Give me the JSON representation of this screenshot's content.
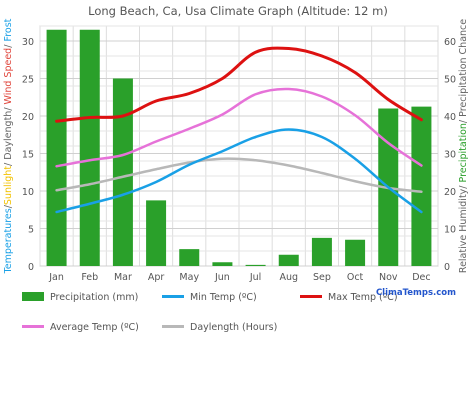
{
  "chart_data": {
    "type": "bar",
    "title": "Long Beach, Ca, Usa Climate Graph (Altitude: 12 m)",
    "categories": [
      "Jan",
      "Feb",
      "Mar",
      "Apr",
      "May",
      "Jun",
      "Jul",
      "Aug",
      "Sep",
      "Oct",
      "Nov",
      "Dec"
    ],
    "left_axis": {
      "label_parts": [
        {
          "text": "Temperatures",
          "color": "#19a0e6"
        },
        {
          "text": "/",
          "color": "#666666"
        },
        {
          "text": "Sunlight",
          "color": "#f2c200"
        },
        {
          "text": "/ Daylength/ ",
          "color": "#666666"
        },
        {
          "text": "Wind Speed",
          "color": "#e0463c"
        },
        {
          "text": "/ ",
          "color": "#666666"
        },
        {
          "text": "Frost",
          "color": "#19a0e6"
        }
      ],
      "ylim": [
        0,
        32
      ],
      "ticks": [
        "0",
        "5",
        "10",
        "15",
        "20",
        "25",
        "30"
      ]
    },
    "right_axis": {
      "label_parts": [
        {
          "text": "Relative Humidity/ ",
          "color": "#666666"
        },
        {
          "text": "Precipitation",
          "color": "#2ca02c"
        },
        {
          "text": "/ Precipitation Chance",
          "color": "#666666"
        }
      ],
      "ylim": [
        0,
        64
      ],
      "ticks": [
        "0",
        "10",
        "20",
        "30",
        "40",
        "50",
        "60"
      ]
    },
    "series": [
      {
        "name": "Precipitation (mm)",
        "kind": "bar",
        "axis": "right",
        "color": "#2aa02a",
        "values": [
          63,
          63,
          50,
          17.5,
          4.5,
          1,
          0.3,
          3,
          7.5,
          7,
          42,
          42.5
        ]
      },
      {
        "name": "Min Temp (ºC)",
        "kind": "line",
        "axis": "left",
        "color": "#19a0e6",
        "values": [
          7.2,
          8.3,
          9.5,
          11.2,
          13.5,
          15.3,
          17.2,
          18.2,
          17.2,
          14.3,
          10.5,
          7.2
        ]
      },
      {
        "name": "Max Temp (ºC)",
        "kind": "line",
        "axis": "left",
        "color": "#dd1111",
        "values": [
          19.3,
          19.8,
          20.0,
          22.0,
          23.0,
          25.0,
          28.5,
          29.0,
          28.0,
          25.8,
          22.2,
          19.5
        ]
      },
      {
        "name": "Average Temp (ºC)",
        "kind": "line",
        "axis": "left",
        "color": "#e672d8",
        "values": [
          13.3,
          14.1,
          14.8,
          16.6,
          18.3,
          20.2,
          22.9,
          23.6,
          22.6,
          20.1,
          16.4,
          13.4
        ]
      },
      {
        "name": "Daylength (Hours)",
        "kind": "line",
        "axis": "left",
        "color": "#b8b8b8",
        "values": [
          10.1,
          10.9,
          11.9,
          12.9,
          13.8,
          14.3,
          14.1,
          13.4,
          12.4,
          11.3,
          10.4,
          9.9
        ]
      }
    ],
    "grid": true,
    "legend": "bottom"
  },
  "branding": {
    "text": "ClimaTemps.com",
    "color": "#2255cc"
  }
}
